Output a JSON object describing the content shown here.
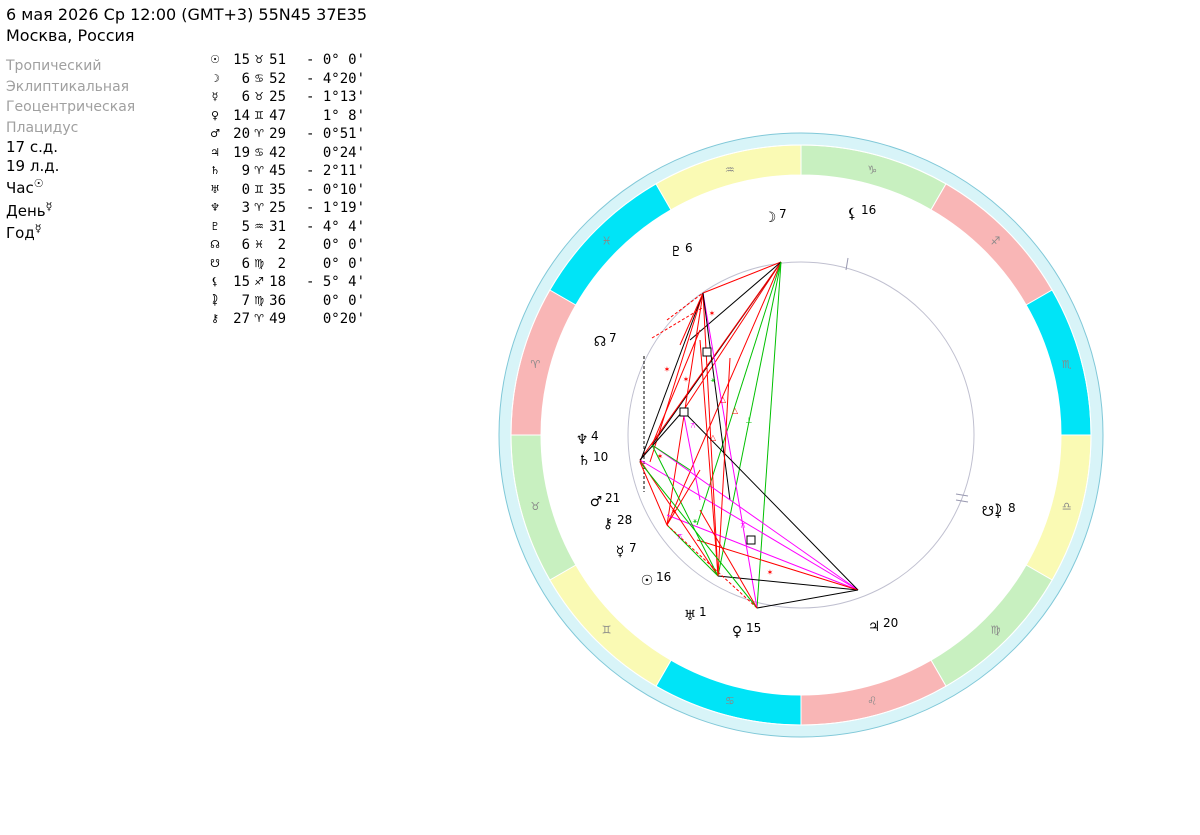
{
  "header": {
    "line1": "6 мая 2026  Ср  12:00 (GMT+3) 55N45  37E35",
    "line2": "Москва, Россия"
  },
  "settings": [
    "Тропический",
    "Эклиптикальная",
    "Геоцентрическая",
    "Плацидус"
  ],
  "info": [
    {
      "text": "17 с.д.",
      "sup": ""
    },
    {
      "text": "19 л.д.",
      "sup": ""
    },
    {
      "text": "Час",
      "sup": "☉"
    },
    {
      "text": "День",
      "sup": "☿"
    },
    {
      "text": "Год",
      "sup": "☿"
    }
  ],
  "planets": [
    {
      "name": "sun",
      "glyph": "☉",
      "deg": "15",
      "sign": "♉",
      "min": "51",
      "decl": "- 0° 0'"
    },
    {
      "name": "moon",
      "glyph": "☽",
      "deg": "6",
      "sign": "♋",
      "min": "52",
      "decl": "- 4°20'"
    },
    {
      "name": "mercury",
      "glyph": "☿",
      "deg": "6",
      "sign": "♉",
      "min": "25",
      "decl": "- 1°13'"
    },
    {
      "name": "venus",
      "glyph": "♀",
      "deg": "14",
      "sign": "♊",
      "min": "47",
      "decl": "  1° 8'"
    },
    {
      "name": "mars",
      "glyph": "♂",
      "deg": "20",
      "sign": "♈",
      "min": "29",
      "decl": "- 0°51'"
    },
    {
      "name": "jupiter",
      "glyph": "♃",
      "deg": "19",
      "sign": "♋",
      "min": "42",
      "decl": "  0°24'"
    },
    {
      "name": "saturn",
      "glyph": "♄",
      "deg": "9",
      "sign": "♈",
      "min": "45",
      "decl": "- 2°11'"
    },
    {
      "name": "uranus",
      "glyph": "♅",
      "deg": "0",
      "sign": "♊",
      "min": "35",
      "decl": "- 0°10'"
    },
    {
      "name": "neptune",
      "glyph": "♆",
      "deg": "3",
      "sign": "♈",
      "min": "25",
      "decl": "- 1°19'"
    },
    {
      "name": "pluto",
      "glyph": "♇",
      "deg": "5",
      "sign": "♒",
      "min": "31",
      "decl": "- 4° 4'"
    },
    {
      "name": "north-node",
      "glyph": "☊",
      "deg": "6",
      "sign": "♓",
      "min": "2",
      "decl": "  0° 0'"
    },
    {
      "name": "south-node",
      "glyph": "☋",
      "deg": "6",
      "sign": "♍",
      "min": "2",
      "decl": "  0° 0'"
    },
    {
      "name": "lilith",
      "glyph": "⚸",
      "deg": "15",
      "sign": "♐",
      "min": "18",
      "decl": "- 5° 4'"
    },
    {
      "name": "selena",
      "glyph": "⯝",
      "deg": "7",
      "sign": "♍",
      "min": "36",
      "decl": "  0° 0'"
    },
    {
      "name": "chiron",
      "glyph": "⚷",
      "deg": "27",
      "sign": "♈",
      "min": "49",
      "decl": "  0°20'"
    }
  ],
  "wheel": {
    "zodiac": [
      {
        "glyph": "♑",
        "color": "#c8f0c0"
      },
      {
        "glyph": "♐",
        "color": "#f9b6b6"
      },
      {
        "glyph": "♏",
        "color": "#00e4f7"
      },
      {
        "glyph": "♎",
        "color": "#fafab4"
      },
      {
        "glyph": "♍",
        "color": "#c8f0c0"
      },
      {
        "glyph": "♌",
        "color": "#f9b6b6"
      },
      {
        "glyph": "♋",
        "color": "#00e4f7"
      },
      {
        "glyph": "♊",
        "color": "#fafab4"
      },
      {
        "glyph": "♉",
        "color": "#c8f0c0"
      },
      {
        "glyph": "♈",
        "color": "#f9b6b6"
      },
      {
        "glyph": "♓",
        "color": "#00e4f7"
      },
      {
        "glyph": "♒",
        "color": "#fafab4"
      }
    ],
    "planet_labels": [
      {
        "name": "moon",
        "glyph": "☽",
        "deg": "7"
      },
      {
        "name": "lilith",
        "glyph": "⚸",
        "deg": "16"
      },
      {
        "name": "pluto",
        "glyph": "♇",
        "deg": "6"
      },
      {
        "name": "north-node",
        "glyph": "☊",
        "deg": "7"
      },
      {
        "name": "neptune",
        "glyph": "♆",
        "deg": "4"
      },
      {
        "name": "saturn",
        "glyph": "♄",
        "deg": "10"
      },
      {
        "name": "mars",
        "glyph": "♂",
        "deg": "21"
      },
      {
        "name": "chiron",
        "glyph": "⚷",
        "deg": "28"
      },
      {
        "name": "mercury",
        "glyph": "☿",
        "deg": "7"
      },
      {
        "name": "sun",
        "glyph": "☉",
        "deg": "16"
      },
      {
        "name": "uranus",
        "glyph": "♅",
        "deg": "1"
      },
      {
        "name": "venus",
        "glyph": "♀",
        "deg": "15"
      },
      {
        "name": "jupiter",
        "glyph": "♃",
        "deg": "20"
      },
      {
        "name": "south-node-selena",
        "glyph": "☋⯝",
        "deg": "8"
      }
    ],
    "colors": {
      "outer_ring": "#d8f4f8",
      "outer_edge": "#80c8d8",
      "inner_circle": "#c0c0d0",
      "square": "#000000",
      "trine": "#ff0000",
      "sextile": "#00c000",
      "quincunx": "#ff00ff"
    }
  }
}
